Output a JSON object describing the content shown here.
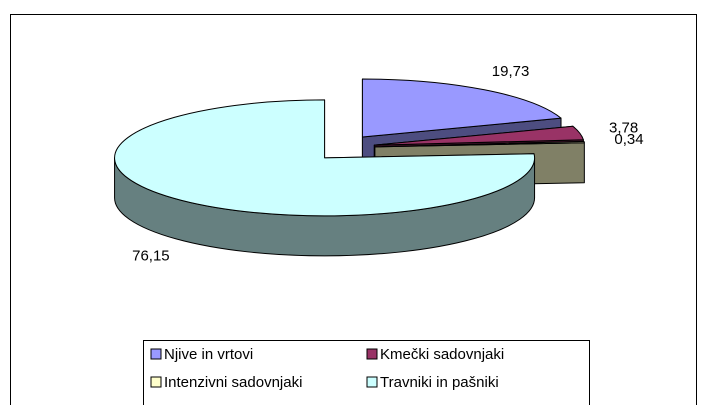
{
  "chart_data": {
    "type": "pie",
    "categories": [
      "Njive in vrtovi",
      "Kmečki sadovnjaki",
      "Intenzivni sadovnjaki",
      "Travniki in pašniki"
    ],
    "values": [
      19.73,
      3.78,
      0.34,
      76.15
    ],
    "value_labels": [
      "19,73",
      "3,78",
      "0,34",
      "76,15"
    ],
    "colors": [
      "#9999ff",
      "#993366",
      "#ffffcc",
      "#ccffff"
    ],
    "legend": "bottom"
  }
}
